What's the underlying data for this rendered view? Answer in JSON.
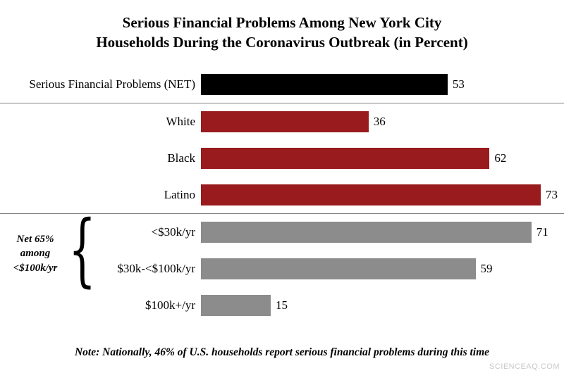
{
  "title": {
    "line1": "Serious Financial Problems Among New York City",
    "line2": "Households During the Coronavirus Outbreak (in Percent)"
  },
  "chart_data": {
    "type": "bar",
    "orientation": "horizontal",
    "title": "Serious Financial Problems Among New York City Households During the Coronavirus Outbreak (in Percent)",
    "categories": [
      "Serious Financial Problems (NET)",
      "White",
      "Black",
      "Latino",
      "<$30k/yr",
      "$30k-<$100k/yr",
      "$100k+/yr"
    ],
    "values": [
      53,
      36,
      62,
      73,
      71,
      59,
      15
    ],
    "colors": [
      "#000000",
      "#991b1e",
      "#991b1e",
      "#991b1e",
      "#8c8c8c",
      "#8c8c8c",
      "#8c8c8c"
    ],
    "xlim": [
      0,
      78
    ],
    "grid": false,
    "legend": false,
    "dividers_after": [
      0,
      3
    ],
    "annotation": "Net 65% among <$100k/yr",
    "annotation_brace": "{",
    "note": "Note: Nationally, 46% of U.S. households report serious financial problems during this time"
  },
  "watermark": "SCIENCEAQ.COM"
}
